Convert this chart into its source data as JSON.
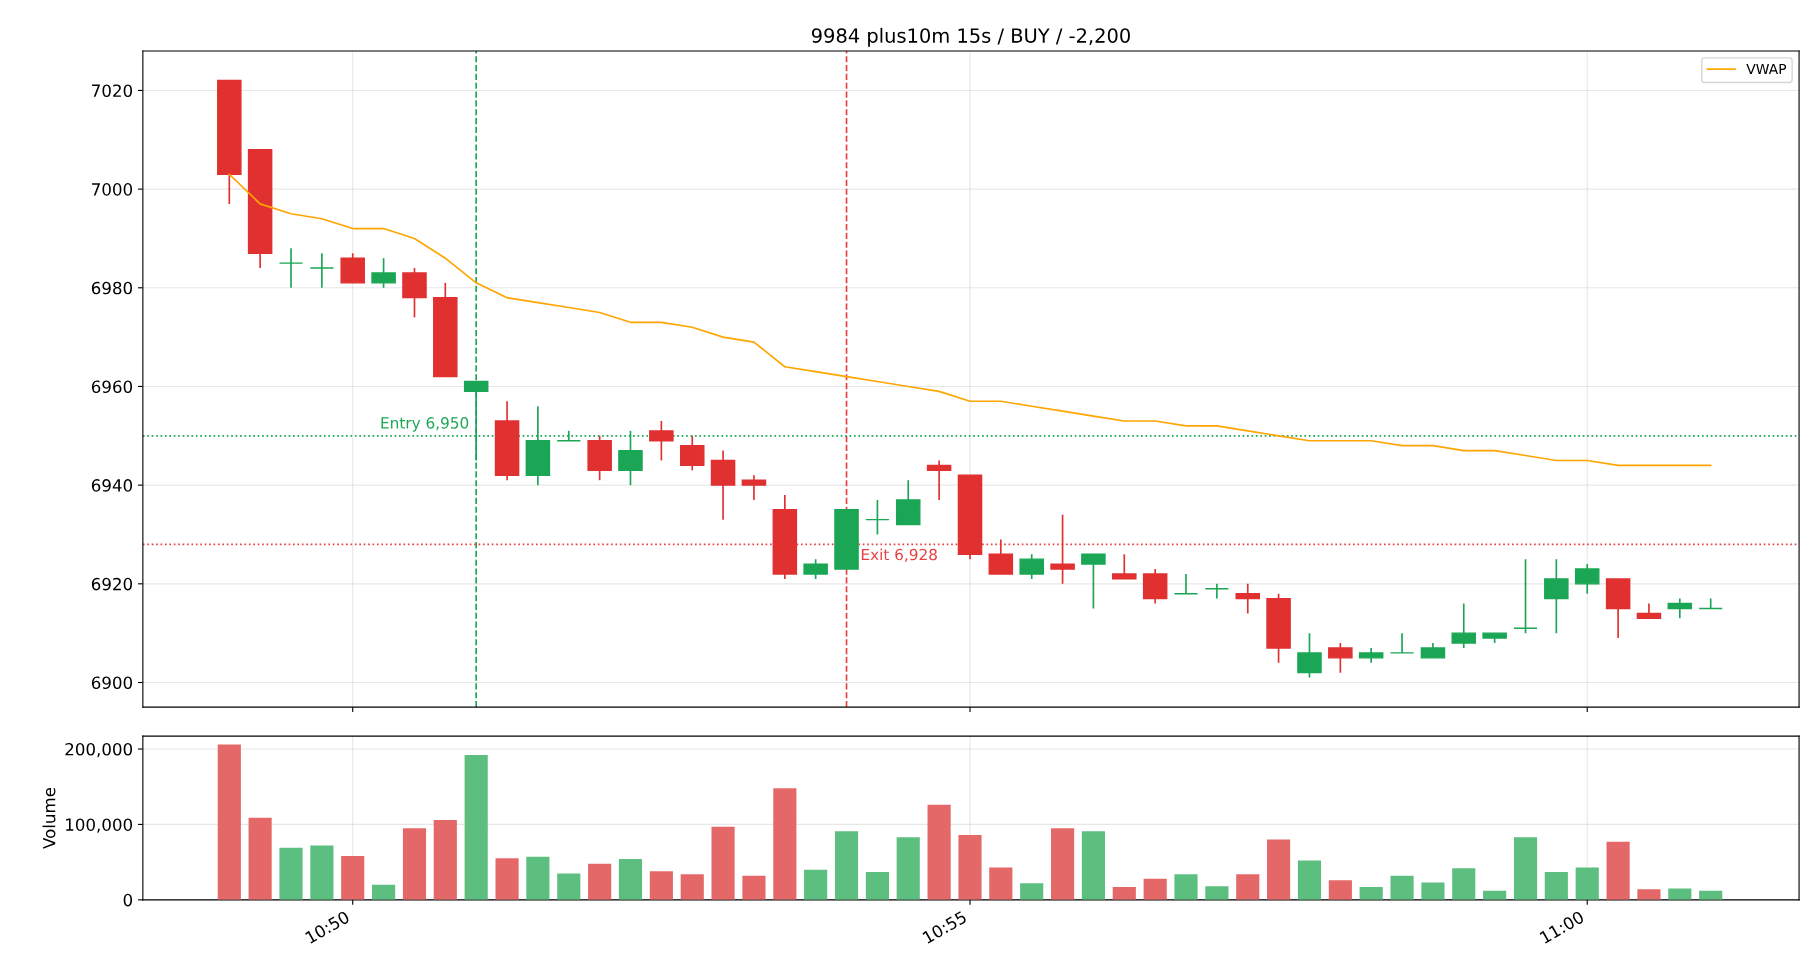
{
  "chart_data": [
    {
      "type": "candlestick",
      "title": "9984 plus10m 15s / BUY / -2,200",
      "x": [
        10.81667,
        10.82083,
        10.825,
        10.82917,
        10.83333,
        10.8375,
        10.84167,
        10.84583,
        10.85,
        10.85417,
        10.85833,
        10.8625,
        10.86667,
        10.87083,
        10.875,
        10.87917,
        10.88333,
        10.8875,
        10.89167,
        10.89583,
        10.9,
        10.90417,
        10.90833,
        10.9125,
        10.91667,
        10.92083,
        10.925,
        10.92917,
        10.93333,
        10.9375,
        10.94167,
        10.94583,
        10.95,
        10.95417,
        10.95833,
        10.9625,
        10.96667,
        10.97083,
        10.975,
        10.97917,
        10.98333,
        10.9875,
        10.99167,
        10.99583,
        11.0,
        11.00417,
        11.00833,
        11.0125,
        11.01667
      ],
      "ohlc": [
        [
          7022,
          7022,
          6997,
          7003
        ],
        [
          7008,
          7008,
          6984,
          6987
        ],
        [
          6985,
          6988,
          6980,
          6985
        ],
        [
          6984,
          6987,
          6980,
          6984
        ],
        [
          6986,
          6987,
          6981,
          6981
        ],
        [
          6981,
          6986,
          6980,
          6983
        ],
        [
          6983,
          6984,
          6974,
          6978
        ],
        [
          6978,
          6981,
          6962,
          6962
        ],
        [
          6959,
          6961,
          6945,
          6961
        ],
        [
          6953,
          6957,
          6941,
          6942
        ],
        [
          6942,
          6956,
          6940,
          6949
        ],
        [
          6949,
          6951,
          6949,
          6949
        ],
        [
          6949,
          6950,
          6941,
          6943
        ],
        [
          6943,
          6951,
          6940,
          6947
        ],
        [
          6951,
          6953,
          6945,
          6949
        ],
        [
          6948,
          6950,
          6943,
          6944
        ],
        [
          6945,
          6947,
          6933,
          6940
        ],
        [
          6941,
          6942,
          6937,
          6940
        ],
        [
          6935,
          6938,
          6921,
          6922
        ],
        [
          6922,
          6925,
          6921,
          6924
        ],
        [
          6923,
          6935,
          6923,
          6935
        ],
        [
          6933,
          6937,
          6930,
          6933
        ],
        [
          6932,
          6941,
          6932,
          6937
        ],
        [
          6944,
          6945,
          6937,
          6943
        ],
        [
          6942,
          6942,
          6925,
          6926
        ],
        [
          6926,
          6929,
          6922,
          6922
        ],
        [
          6922,
          6926,
          6921,
          6925
        ],
        [
          6924,
          6934,
          6920,
          6923
        ],
        [
          6924,
          6926,
          6915,
          6926
        ],
        [
          6922,
          6926,
          6921,
          6921
        ],
        [
          6922,
          6923,
          6916,
          6917
        ],
        [
          6918,
          6922,
          6918,
          6918
        ],
        [
          6919,
          6920,
          6917,
          6919
        ],
        [
          6918,
          6920,
          6914,
          6917
        ],
        [
          6917,
          6918,
          6904,
          6907
        ],
        [
          6902,
          6910,
          6901,
          6906
        ],
        [
          6907,
          6908,
          6902,
          6905
        ],
        [
          6905,
          6907,
          6904,
          6906
        ],
        [
          6906,
          6910,
          6906,
          6906
        ],
        [
          6905,
          6908,
          6905,
          6907
        ],
        [
          6908,
          6916,
          6907,
          6910
        ],
        [
          6909,
          6910,
          6908,
          6910
        ],
        [
          6911,
          6925,
          6910,
          6911
        ],
        [
          6917,
          6925,
          6910,
          6921
        ],
        [
          6920,
          6924,
          6918,
          6923
        ],
        [
          6921,
          6921,
          6909,
          6915
        ],
        [
          6914,
          6916,
          6913,
          6913
        ],
        [
          6915,
          6917,
          6913,
          6916
        ],
        [
          6915,
          6917,
          6915,
          6915
        ]
      ],
      "colors": [
        "#e03030",
        "#e03030",
        "#1aa655",
        "#1aa655",
        "#e03030",
        "#1aa655",
        "#e03030",
        "#e03030",
        "#1aa655",
        "#e03030",
        "#1aa655",
        "#1aa655",
        "#e03030",
        "#1aa655",
        "#e03030",
        "#e03030",
        "#e03030",
        "#e03030",
        "#e03030",
        "#1aa655",
        "#1aa655",
        "#1aa655",
        "#1aa655",
        "#e03030",
        "#e03030",
        "#e03030",
        "#1aa655",
        "#e03030",
        "#1aa655",
        "#e03030",
        "#e03030",
        "#1aa655",
        "#1aa655",
        "#e03030",
        "#e03030",
        "#1aa655",
        "#e03030",
        "#1aa655",
        "#1aa655",
        "#1aa655",
        "#1aa655",
        "#1aa655",
        "#1aa655",
        "#1aa655",
        "#1aa655",
        "#e03030",
        "#e03030",
        "#1aa655",
        "#1aa655"
      ],
      "series": [
        {
          "type": "line",
          "name": "VWAP",
          "color": "#ffa500",
          "values": [
            7003,
            6997,
            6995,
            6994,
            6992,
            6992,
            6990,
            6986,
            6981,
            6978,
            6977,
            6976,
            6975,
            6973,
            6973,
            6972,
            6970,
            6969,
            6964,
            6963,
            6962,
            6961,
            6960,
            6959,
            6957,
            6957,
            6956,
            6955,
            6954,
            6953,
            6953,
            6952,
            6952,
            6951,
            6950,
            6949,
            6949,
            6949,
            6948,
            6948,
            6947,
            6947,
            6946,
            6945,
            6945,
            6944,
            6944,
            6944,
            6944
          ]
        }
      ],
      "ref_lines": [
        {
          "axis": "x",
          "value": 10.85,
          "color": "#1aa655",
          "line_style": "dashed"
        },
        {
          "axis": "x",
          "value": 10.9,
          "color": "#e84040",
          "line_style": "dashed"
        },
        {
          "axis": "y",
          "value": 6950,
          "color": "#1aa655",
          "line_style": "dotted"
        },
        {
          "axis": "y",
          "value": 6928,
          "color": "#e84040",
          "line_style": "dotted"
        }
      ],
      "annotations": [
        {
          "text": "Entry 6,950",
          "x": 10.85,
          "y": 6950
        },
        {
          "text": "Exit 6,928",
          "x": 10.9,
          "y": 6928
        }
      ],
      "xlim": [
        10.805,
        11.0286
      ],
      "xticks": [
        {
          "value": 10.83333,
          "label": null
        },
        {
          "value": 10.91667,
          "label": null
        },
        {
          "value": 11.0,
          "label": null
        }
      ],
      "ylim": [
        6895,
        7028
      ],
      "yticks": [
        6900,
        6920,
        6940,
        6960,
        6980,
        7000,
        7020
      ],
      "grid": true,
      "legend": "top right",
      "tick_labels": "y"
    },
    {
      "type": "bar",
      "ylabel": "Volume",
      "x": [
        10.81667,
        10.82083,
        10.825,
        10.82917,
        10.83333,
        10.8375,
        10.84167,
        10.84583,
        10.85,
        10.85417,
        10.85833,
        10.8625,
        10.86667,
        10.87083,
        10.875,
        10.87917,
        10.88333,
        10.8875,
        10.89167,
        10.89583,
        10.9,
        10.90417,
        10.90833,
        10.9125,
        10.91667,
        10.92083,
        10.925,
        10.92917,
        10.93333,
        10.9375,
        10.94167,
        10.94583,
        10.95,
        10.95417,
        10.95833,
        10.9625,
        10.96667,
        10.97083,
        10.975,
        10.97917,
        10.98333,
        10.9875,
        10.99167,
        10.99583,
        11.0,
        11.00417,
        11.00833,
        11.0125,
        11.01667
      ],
      "values": [
        206000,
        109000,
        69000,
        72000,
        58000,
        20000,
        95000,
        106000,
        192000,
        55000,
        57000,
        35000,
        48000,
        54000,
        38000,
        34000,
        97000,
        32000,
        148000,
        40000,
        91000,
        37000,
        83000,
        126000,
        86000,
        43000,
        22000,
        95000,
        91000,
        17000,
        28000,
        34000,
        18000,
        34000,
        80000,
        52000,
        26000,
        17000,
        32000,
        23000,
        42000,
        12000,
        83000,
        37000,
        43000,
        77000,
        14000,
        15000,
        12000
      ],
      "colors": [
        "#e46868",
        "#e46868",
        "#5cbf7f",
        "#5cbf7f",
        "#e46868",
        "#5cbf7f",
        "#e46868",
        "#e46868",
        "#5cbf7f",
        "#e46868",
        "#5cbf7f",
        "#5cbf7f",
        "#e46868",
        "#5cbf7f",
        "#e46868",
        "#e46868",
        "#e46868",
        "#e46868",
        "#e46868",
        "#5cbf7f",
        "#5cbf7f",
        "#5cbf7f",
        "#5cbf7f",
        "#e46868",
        "#e46868",
        "#e46868",
        "#5cbf7f",
        "#e46868",
        "#5cbf7f",
        "#e46868",
        "#e46868",
        "#5cbf7f",
        "#5cbf7f",
        "#e46868",
        "#e46868",
        "#5cbf7f",
        "#e46868",
        "#5cbf7f",
        "#5cbf7f",
        "#5cbf7f",
        "#5cbf7f",
        "#5cbf7f",
        "#5cbf7f",
        "#5cbf7f",
        "#5cbf7f",
        "#e46868",
        "#e46868",
        "#5cbf7f",
        "#5cbf7f"
      ],
      "xlim": [
        10.805,
        11.0286
      ],
      "xticks": [
        {
          "value": 10.83333,
          "label": "10:50"
        },
        {
          "value": 10.91667,
          "label": "10:55"
        },
        {
          "value": 11.0,
          "label": "11:00"
        }
      ],
      "ylim": [
        0,
        217000
      ],
      "yticks": [
        {
          "value": 0,
          "label": "0"
        },
        {
          "value": 100000,
          "label": "100,000"
        },
        {
          "value": 200000,
          "label": "200,000"
        }
      ],
      "grid": true
    }
  ]
}
